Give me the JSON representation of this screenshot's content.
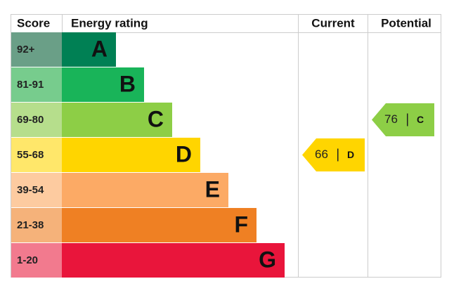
{
  "header": {
    "score": "Score",
    "energy_rating": "Energy rating",
    "current": "Current",
    "potential": "Potential"
  },
  "rows": [
    {
      "score": "92+",
      "rating": "A",
      "color": "#008054",
      "score_color": "#6a9f87"
    },
    {
      "score": "81-91",
      "rating": "B",
      "color": "#19b459",
      "score_color": "#77cc8d"
    },
    {
      "score": "69-80",
      "rating": "C",
      "color": "#8dce46",
      "score_color": "#b6de8c"
    },
    {
      "score": "55-68",
      "rating": "D",
      "color": "#ffd500",
      "score_color": "#ffe76a"
    },
    {
      "score": "39-54",
      "rating": "E",
      "color": "#fcaa65",
      "score_color": "#fdcba0"
    },
    {
      "score": "21-38",
      "rating": "F",
      "color": "#ef8023",
      "score_color": "#f5b27a"
    },
    {
      "score": "1-20",
      "rating": "G",
      "color": "#e9153b",
      "score_color": "#f27a8e"
    }
  ],
  "current": {
    "value": 66,
    "rating": "D"
  },
  "potential": {
    "value": 76,
    "rating": "C"
  }
}
